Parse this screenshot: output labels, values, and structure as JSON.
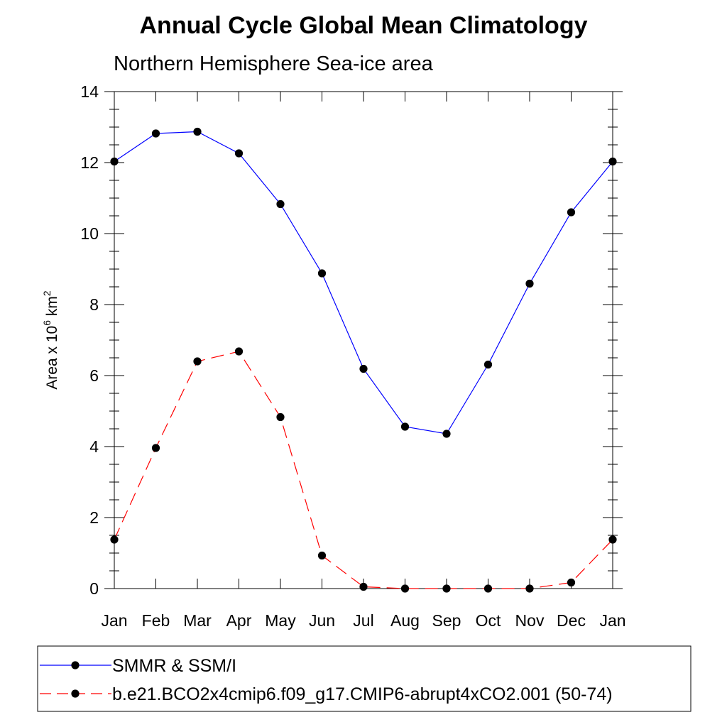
{
  "chart_data": {
    "type": "line",
    "title": "Annual Cycle Global Mean Climatology",
    "subtitle": "Northern Hemisphere Sea-ice area",
    "xlabel": "",
    "ylabel": {
      "prefix": "Area x 10",
      "exponent": "6",
      "unit": " km",
      "unit_exponent": "2"
    },
    "categories": [
      "Jan",
      "Feb",
      "Mar",
      "Apr",
      "May",
      "Jun",
      "Jul",
      "Aug",
      "Sep",
      "Oct",
      "Nov",
      "Dec",
      "Jan"
    ],
    "ylim": [
      0,
      14
    ],
    "yticks": [
      0,
      2,
      4,
      6,
      8,
      10,
      12,
      14
    ],
    "y_minor_step": 0.5,
    "grid": false,
    "legend_position": "bottom",
    "series": [
      {
        "name": "SMMR & SSM/I",
        "color": "#0000ff",
        "dash": "solid",
        "marker": "filled-circle",
        "values": [
          12.03,
          12.82,
          12.87,
          12.26,
          10.83,
          8.88,
          6.19,
          4.56,
          4.36,
          6.31,
          8.59,
          10.6,
          12.03
        ]
      },
      {
        "name": "b.e21.BCO2x4cmip6.f09_g17.CMIP6-abrupt4xCO2.001 (50-74)",
        "color": "#ff0000",
        "dash": "dashed",
        "marker": "filled-circle",
        "values": [
          1.38,
          3.96,
          6.4,
          6.68,
          4.83,
          0.93,
          0.05,
          0.0,
          0.0,
          0.0,
          0.0,
          0.17,
          1.38
        ]
      }
    ]
  }
}
